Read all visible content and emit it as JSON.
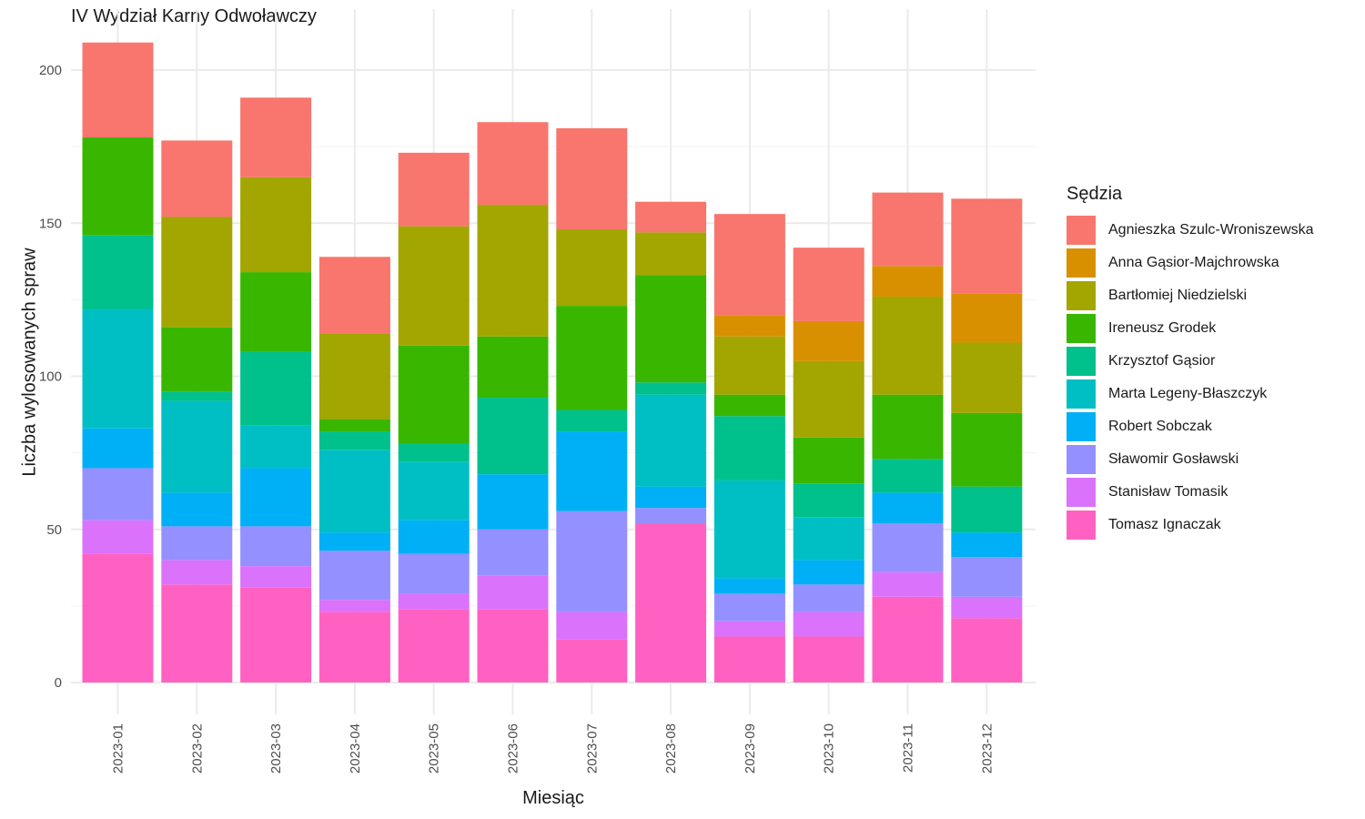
{
  "chart_data": {
    "type": "bar",
    "stacked": true,
    "title": "IV Wydział Karny Odwoławczy",
    "xlabel": "Miesiąc",
    "ylabel": "Liczba wylosowanych spraw",
    "ylim": [
      0,
      212
    ],
    "yticks": [
      0,
      50,
      100,
      150,
      200
    ],
    "grid": true,
    "legend": {
      "title": "Sędzia",
      "position": "right"
    },
    "categories": [
      "2023-01",
      "2023-02",
      "2023-03",
      "2023-04",
      "2023-05",
      "2023-06",
      "2023-07",
      "2023-08",
      "2023-09",
      "2023-10",
      "2023-11",
      "2023-12"
    ],
    "series": [
      {
        "name": "Tomasz Ignaczak",
        "color": "#FF61C3",
        "values": [
          42,
          32,
          31,
          23,
          24,
          24,
          14,
          52,
          15,
          15,
          28,
          21
        ]
      },
      {
        "name": "Stanisław Tomasik",
        "color": "#DB72FB",
        "values": [
          11,
          8,
          7,
          4,
          5,
          11,
          9,
          0,
          5,
          8,
          8,
          7
        ]
      },
      {
        "name": "Sławomir Gosławski",
        "color": "#9590FF",
        "values": [
          17,
          11,
          13,
          16,
          13,
          15,
          33,
          5,
          9,
          9,
          16,
          13
        ]
      },
      {
        "name": "Robert Sobczak",
        "color": "#00B0F6",
        "values": [
          13,
          11,
          19,
          6,
          11,
          18,
          26,
          7,
          5,
          8,
          10,
          8
        ]
      },
      {
        "name": "Marta Legeny-Błaszczyk",
        "color": "#00BFC4",
        "values": [
          39,
          30,
          14,
          27,
          19,
          0,
          0,
          30,
          32,
          14,
          0,
          0
        ]
      },
      {
        "name": "Krzysztof Gąsior",
        "color": "#00C08B",
        "values": [
          24,
          3,
          24,
          6,
          6,
          25,
          7,
          4,
          21,
          11,
          11,
          15
        ]
      },
      {
        "name": "Ireneusz Grodek",
        "color": "#39B600",
        "values": [
          32,
          21,
          26,
          4,
          32,
          20,
          34,
          35,
          7,
          15,
          21,
          24
        ]
      },
      {
        "name": "Bartłomiej Niedzielski",
        "color": "#A3A500",
        "values": [
          0,
          36,
          31,
          28,
          39,
          43,
          25,
          14,
          19,
          25,
          32,
          23
        ]
      },
      {
        "name": "Anna Gąsior-Majchrowska",
        "color": "#D89000",
        "values": [
          0,
          0,
          0,
          0,
          0,
          0,
          0,
          0,
          7,
          13,
          10,
          16
        ]
      },
      {
        "name": "Agnieszka Szulc-Wroniszewska",
        "color": "#F8766D",
        "values": [
          31,
          25,
          26,
          25,
          24,
          27,
          33,
          10,
          33,
          24,
          24,
          31
        ]
      }
    ],
    "legend_order": [
      "Agnieszka Szulc-Wroniszewska",
      "Anna Gąsior-Majchrowska",
      "Bartłomiej Niedzielski",
      "Ireneusz Grodek",
      "Krzysztof Gąsior",
      "Marta Legeny-Błaszczyk",
      "Robert Sobczak",
      "Sławomir Gosławski",
      "Stanisław Tomasik",
      "Tomasz Ignaczak"
    ]
  }
}
